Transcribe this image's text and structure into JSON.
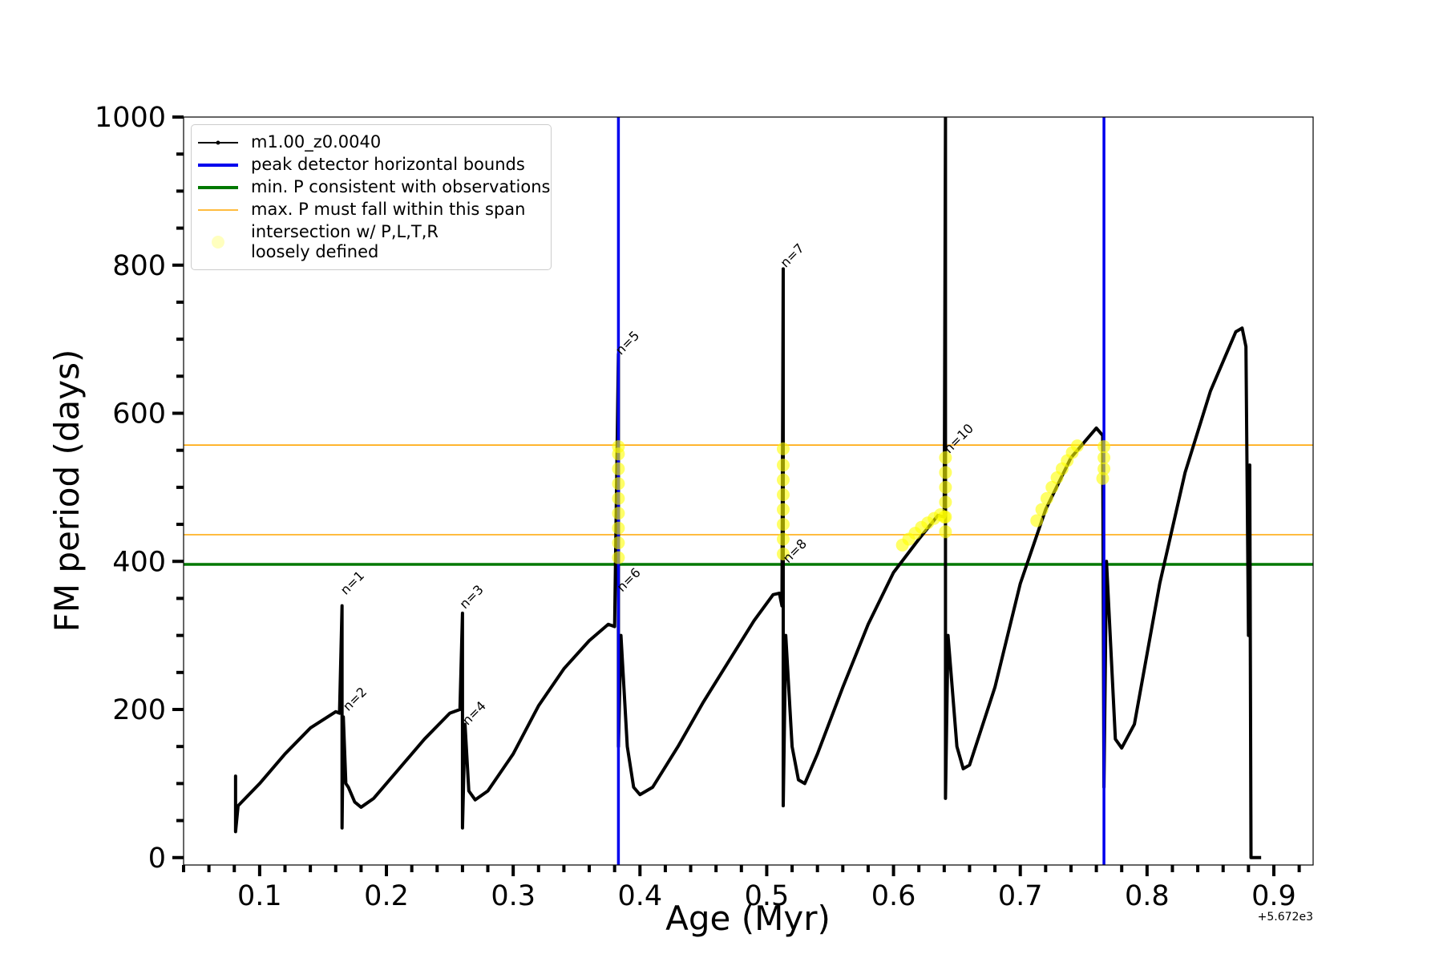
{
  "chart_data": {
    "type": "line",
    "x_label": "Age (Myr)",
    "y_label": "FM period (days)",
    "x_offset_label": "+5.672e3",
    "xlim": [
      0.04,
      0.931
    ],
    "ylim": [
      -10,
      1000
    ],
    "xticks": [
      0.1,
      0.2,
      0.3,
      0.4,
      0.5,
      0.6,
      0.7,
      0.8,
      0.9
    ],
    "yticks": [
      0,
      200,
      400,
      600,
      800,
      1000
    ],
    "xminorticks": [
      0.04,
      0.06,
      0.08,
      0.12,
      0.14,
      0.16,
      0.18,
      0.22,
      0.24,
      0.26,
      0.28,
      0.32,
      0.34,
      0.36,
      0.38,
      0.42,
      0.44,
      0.46,
      0.48,
      0.52,
      0.54,
      0.56,
      0.58,
      0.62,
      0.64,
      0.66,
      0.68,
      0.72,
      0.74,
      0.76,
      0.78,
      0.82,
      0.84,
      0.86,
      0.88,
      0.92
    ],
    "yminorticks": [
      50,
      100,
      150,
      250,
      300,
      350,
      450,
      500,
      550,
      650,
      700,
      750,
      850,
      900,
      950
    ],
    "grid": false,
    "legend": "upper left",
    "series": [
      {
        "name": "m1.00_z0.0040",
        "color": "#000000",
        "x": [
          0.081,
          0.081,
          0.081,
          0.083,
          0.1,
          0.12,
          0.14,
          0.16,
          0.163,
          0.165,
          0.165,
          0.166,
          0.168,
          0.17,
          0.175,
          0.18,
          0.19,
          0.21,
          0.23,
          0.25,
          0.258,
          0.26,
          0.26,
          0.262,
          0.265,
          0.27,
          0.28,
          0.3,
          0.32,
          0.34,
          0.36,
          0.375,
          0.38,
          0.383,
          0.383,
          0.385,
          0.39,
          0.395,
          0.4,
          0.41,
          0.43,
          0.45,
          0.47,
          0.49,
          0.505,
          0.51,
          0.512,
          0.513,
          0.513,
          0.515,
          0.52,
          0.525,
          0.53,
          0.54,
          0.56,
          0.58,
          0.6,
          0.62,
          0.635,
          0.64,
          0.641,
          0.641,
          0.643,
          0.65,
          0.655,
          0.66,
          0.68,
          0.7,
          0.72,
          0.74,
          0.76,
          0.765,
          0.766,
          0.768,
          0.775,
          0.78,
          0.79,
          0.81,
          0.83,
          0.85,
          0.87,
          0.875,
          0.878,
          0.88,
          0.881,
          0.882,
          0.89
        ],
        "values": [
          80,
          110,
          35,
          70,
          100,
          140,
          175,
          197,
          195,
          340,
          40,
          190,
          100,
          95,
          75,
          68,
          80,
          120,
          160,
          195,
          200,
          330,
          40,
          180,
          90,
          78,
          90,
          140,
          205,
          255,
          293,
          315,
          312,
          680,
          150,
          300,
          150,
          95,
          85,
          95,
          150,
          210,
          265,
          320,
          355,
          357,
          340,
          795,
          70,
          300,
          150,
          105,
          100,
          140,
          230,
          315,
          385,
          430,
          462,
          460,
          1000,
          80,
          300,
          150,
          120,
          125,
          230,
          370,
          470,
          540,
          580,
          570,
          95,
          400,
          160,
          148,
          180,
          370,
          520,
          630,
          710,
          715,
          690,
          300,
          530,
          0,
          0
        ]
      }
    ],
    "vlines": {
      "name": "peak detector horizontal bounds",
      "color": "#0000ee",
      "x": [
        0.383,
        0.766
      ]
    },
    "hlines": [
      {
        "name": "min. P consistent with observations",
        "color": "#007800",
        "values": [
          396
        ]
      },
      {
        "name": "max. P must fall within this span",
        "color": "#ffa500",
        "values": [
          436,
          557
        ]
      }
    ],
    "scatter": {
      "name": "intersection w/ P,L,T,R\nloosely defined",
      "color": "#ffff00",
      "x": [
        0.383,
        0.383,
        0.383,
        0.383,
        0.383,
        0.383,
        0.383,
        0.383,
        0.383,
        0.513,
        0.513,
        0.513,
        0.513,
        0.513,
        0.513,
        0.513,
        0.513,
        0.607,
        0.612,
        0.617,
        0.622,
        0.627,
        0.632,
        0.637,
        0.64,
        0.641,
        0.641,
        0.641,
        0.641,
        0.641,
        0.641,
        0.713,
        0.717,
        0.721,
        0.725,
        0.729,
        0.733,
        0.737,
        0.741,
        0.745,
        0.765,
        0.766,
        0.766,
        0.766
      ],
      "values": [
        405,
        425,
        445,
        465,
        485,
        505,
        525,
        545,
        555,
        410,
        430,
        450,
        470,
        490,
        510,
        530,
        552,
        422,
        430,
        438,
        446,
        452,
        458,
        463,
        460,
        440,
        460,
        480,
        500,
        520,
        540,
        455,
        470,
        485,
        500,
        513,
        525,
        536,
        547,
        556,
        512,
        525,
        540,
        555
      ]
    },
    "annotations": [
      {
        "text": "n=1",
        "x": 0.168,
        "y": 354
      },
      {
        "text": "n=2",
        "x": 0.17,
        "y": 197
      },
      {
        "text": "n=3",
        "x": 0.262,
        "y": 335
      },
      {
        "text": "n=4",
        "x": 0.264,
        "y": 178
      },
      {
        "text": "n=5",
        "x": 0.385,
        "y": 678
      },
      {
        "text": "n=6",
        "x": 0.386,
        "y": 358
      },
      {
        "text": "n=7",
        "x": 0.515,
        "y": 796
      },
      {
        "text": "n=8",
        "x": 0.517,
        "y": 397
      },
      {
        "text": "n=10",
        "x": 0.644,
        "y": 545
      }
    ]
  }
}
